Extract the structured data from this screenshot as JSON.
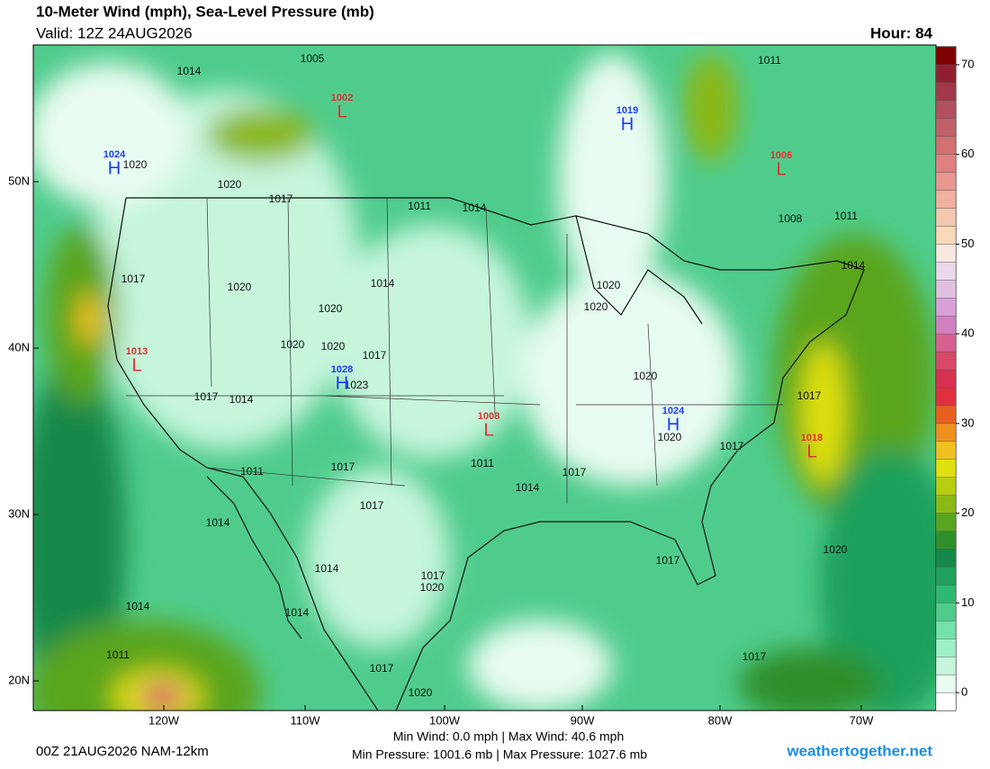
{
  "header": {
    "title": "10-Meter Wind (mph), Sea-Level Pressure (mb)",
    "valid": "Valid: 12Z 24AUG2026",
    "hour": "Hour: 84"
  },
  "map": {
    "lat_labels": [
      "50N",
      "40N",
      "30N",
      "20N"
    ],
    "lon_labels": [
      "120W",
      "110W",
      "100W",
      "90W",
      "80W",
      "70W"
    ],
    "pressure_centers": [
      {
        "type": "H",
        "value": "1024"
      },
      {
        "type": "L",
        "value": "1002"
      },
      {
        "type": "H",
        "value": "1019"
      },
      {
        "type": "L",
        "value": "1006"
      },
      {
        "type": "L",
        "value": "1013"
      },
      {
        "type": "H",
        "value": "1028"
      },
      {
        "type": "L",
        "value": "1008"
      },
      {
        "type": "H",
        "value": "1024"
      },
      {
        "type": "L",
        "value": "1018"
      }
    ],
    "isobar_labels": [
      "1014",
      "1005",
      "1011",
      "1020",
      "1020",
      "1017",
      "1011",
      "1014",
      "1008",
      "1011",
      "1014",
      "1017",
      "1020",
      "1014",
      "1020",
      "1020",
      "1020",
      "1020",
      "1020",
      "1017",
      "1023",
      "1017",
      "1014",
      "1020",
      "1017",
      "1020",
      "1017",
      "1011",
      "1011",
      "1017",
      "1017",
      "1014",
      "1017",
      "1014",
      "1017",
      "1020",
      "1014",
      "1017",
      "1020",
      "1014",
      "1011",
      "1017",
      "1020",
      "1017",
      "1014"
    ]
  },
  "colorbar": {
    "range": [
      -2,
      72
    ],
    "ticks": [
      0,
      10,
      20,
      30,
      40,
      50,
      60,
      70
    ],
    "colors": [
      "#ffffff",
      "#e8fbf0",
      "#c6f5dc",
      "#9df0c8",
      "#74e0aa",
      "#4fcc8c",
      "#2eb872",
      "#1fa05c",
      "#14884a",
      "#2f8f2a",
      "#5aa51f",
      "#8ab818",
      "#b8cc10",
      "#e0e010",
      "#f0c020",
      "#f09020",
      "#e86020",
      "#e03040",
      "#d83050",
      "#d84868",
      "#d86090",
      "#d080c0",
      "#d8a0d8",
      "#e0c0e0",
      "#ecd8ec",
      "#f8e8e0",
      "#f8d8b8",
      "#f4c8b0",
      "#f0b0a0",
      "#e89890",
      "#e08080",
      "#d07070",
      "#c06068",
      "#b05060",
      "#a03848",
      "#902030",
      "#800000"
    ]
  },
  "footer": {
    "run": "00Z 21AUG2026 NAM-12km",
    "wind": "Min Wind:   0.0 mph | Max Wind:  40.6 mph",
    "pressure": "Min Pressure: 1001.6 mb | Max Pressure: 1027.6 mb",
    "site": "weathertogether.net"
  }
}
